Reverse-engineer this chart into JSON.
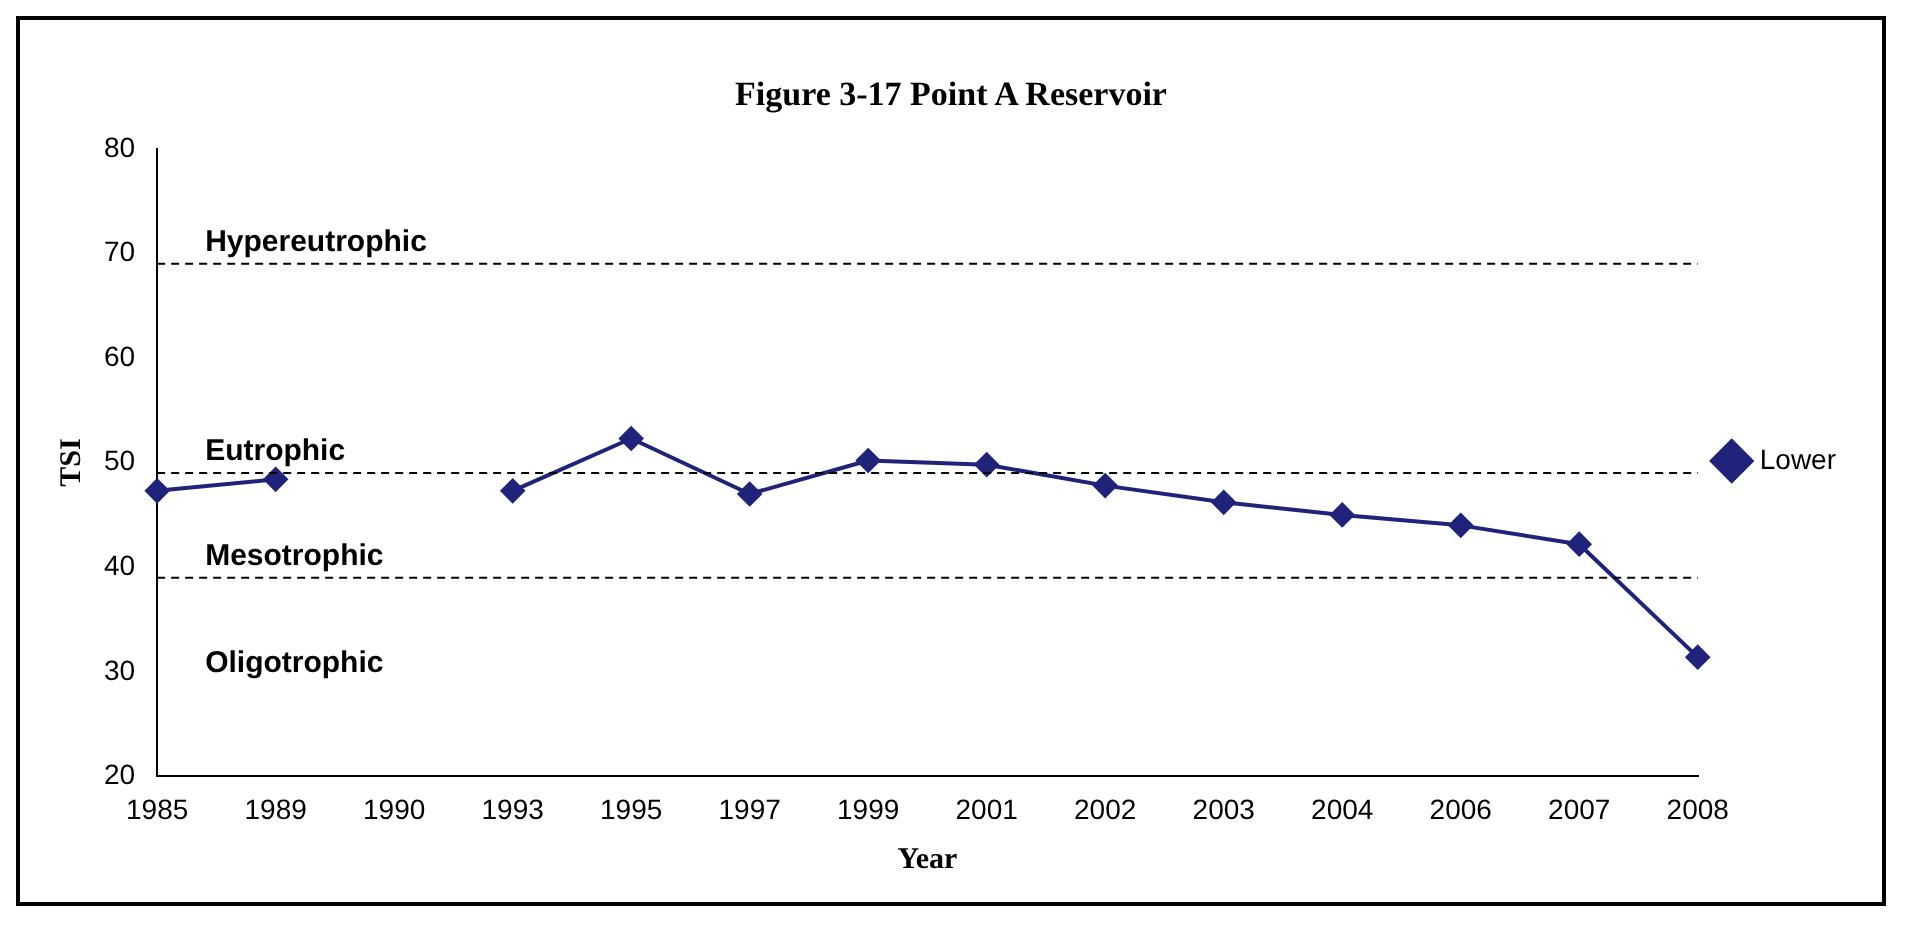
{
  "chart_data": {
    "type": "line",
    "title": "Figure 3-17 Point A Reservoir",
    "xlabel": "Year",
    "ylabel": "TSI",
    "categories": [
      "1985",
      "1989",
      "1990",
      "1993",
      "1995",
      "1997",
      "1999",
      "2001",
      "2002",
      "2003",
      "2004",
      "2006",
      "2007",
      "2008"
    ],
    "series": [
      {
        "name": "Lower",
        "color": "#1f237a",
        "values": [
          47.3,
          48.4,
          null,
          47.3,
          52.3,
          47,
          50.2,
          49.8,
          47.8,
          46.2,
          45,
          44,
          42.2,
          31.4
        ]
      }
    ],
    "ylim": [
      20,
      80
    ],
    "yticks": [
      20,
      30,
      40,
      50,
      60,
      70,
      80
    ],
    "grid": false,
    "legend": "right",
    "marker": "diamond",
    "line_style": "solid",
    "ref_lines": [
      {
        "axis": "y",
        "value": 69,
        "label": "Hypereutrophic",
        "line_style": "dashed",
        "color": "#000000"
      },
      {
        "axis": "y",
        "value": 49,
        "label": "Eutrophic",
        "line_style": "dashed",
        "color": "#000000"
      },
      {
        "axis": "y",
        "value": 39,
        "label": "Mesotrophic",
        "line_style": "dashed",
        "color": "#000000"
      }
    ],
    "annotations": [
      "Oligotrophic"
    ]
  }
}
